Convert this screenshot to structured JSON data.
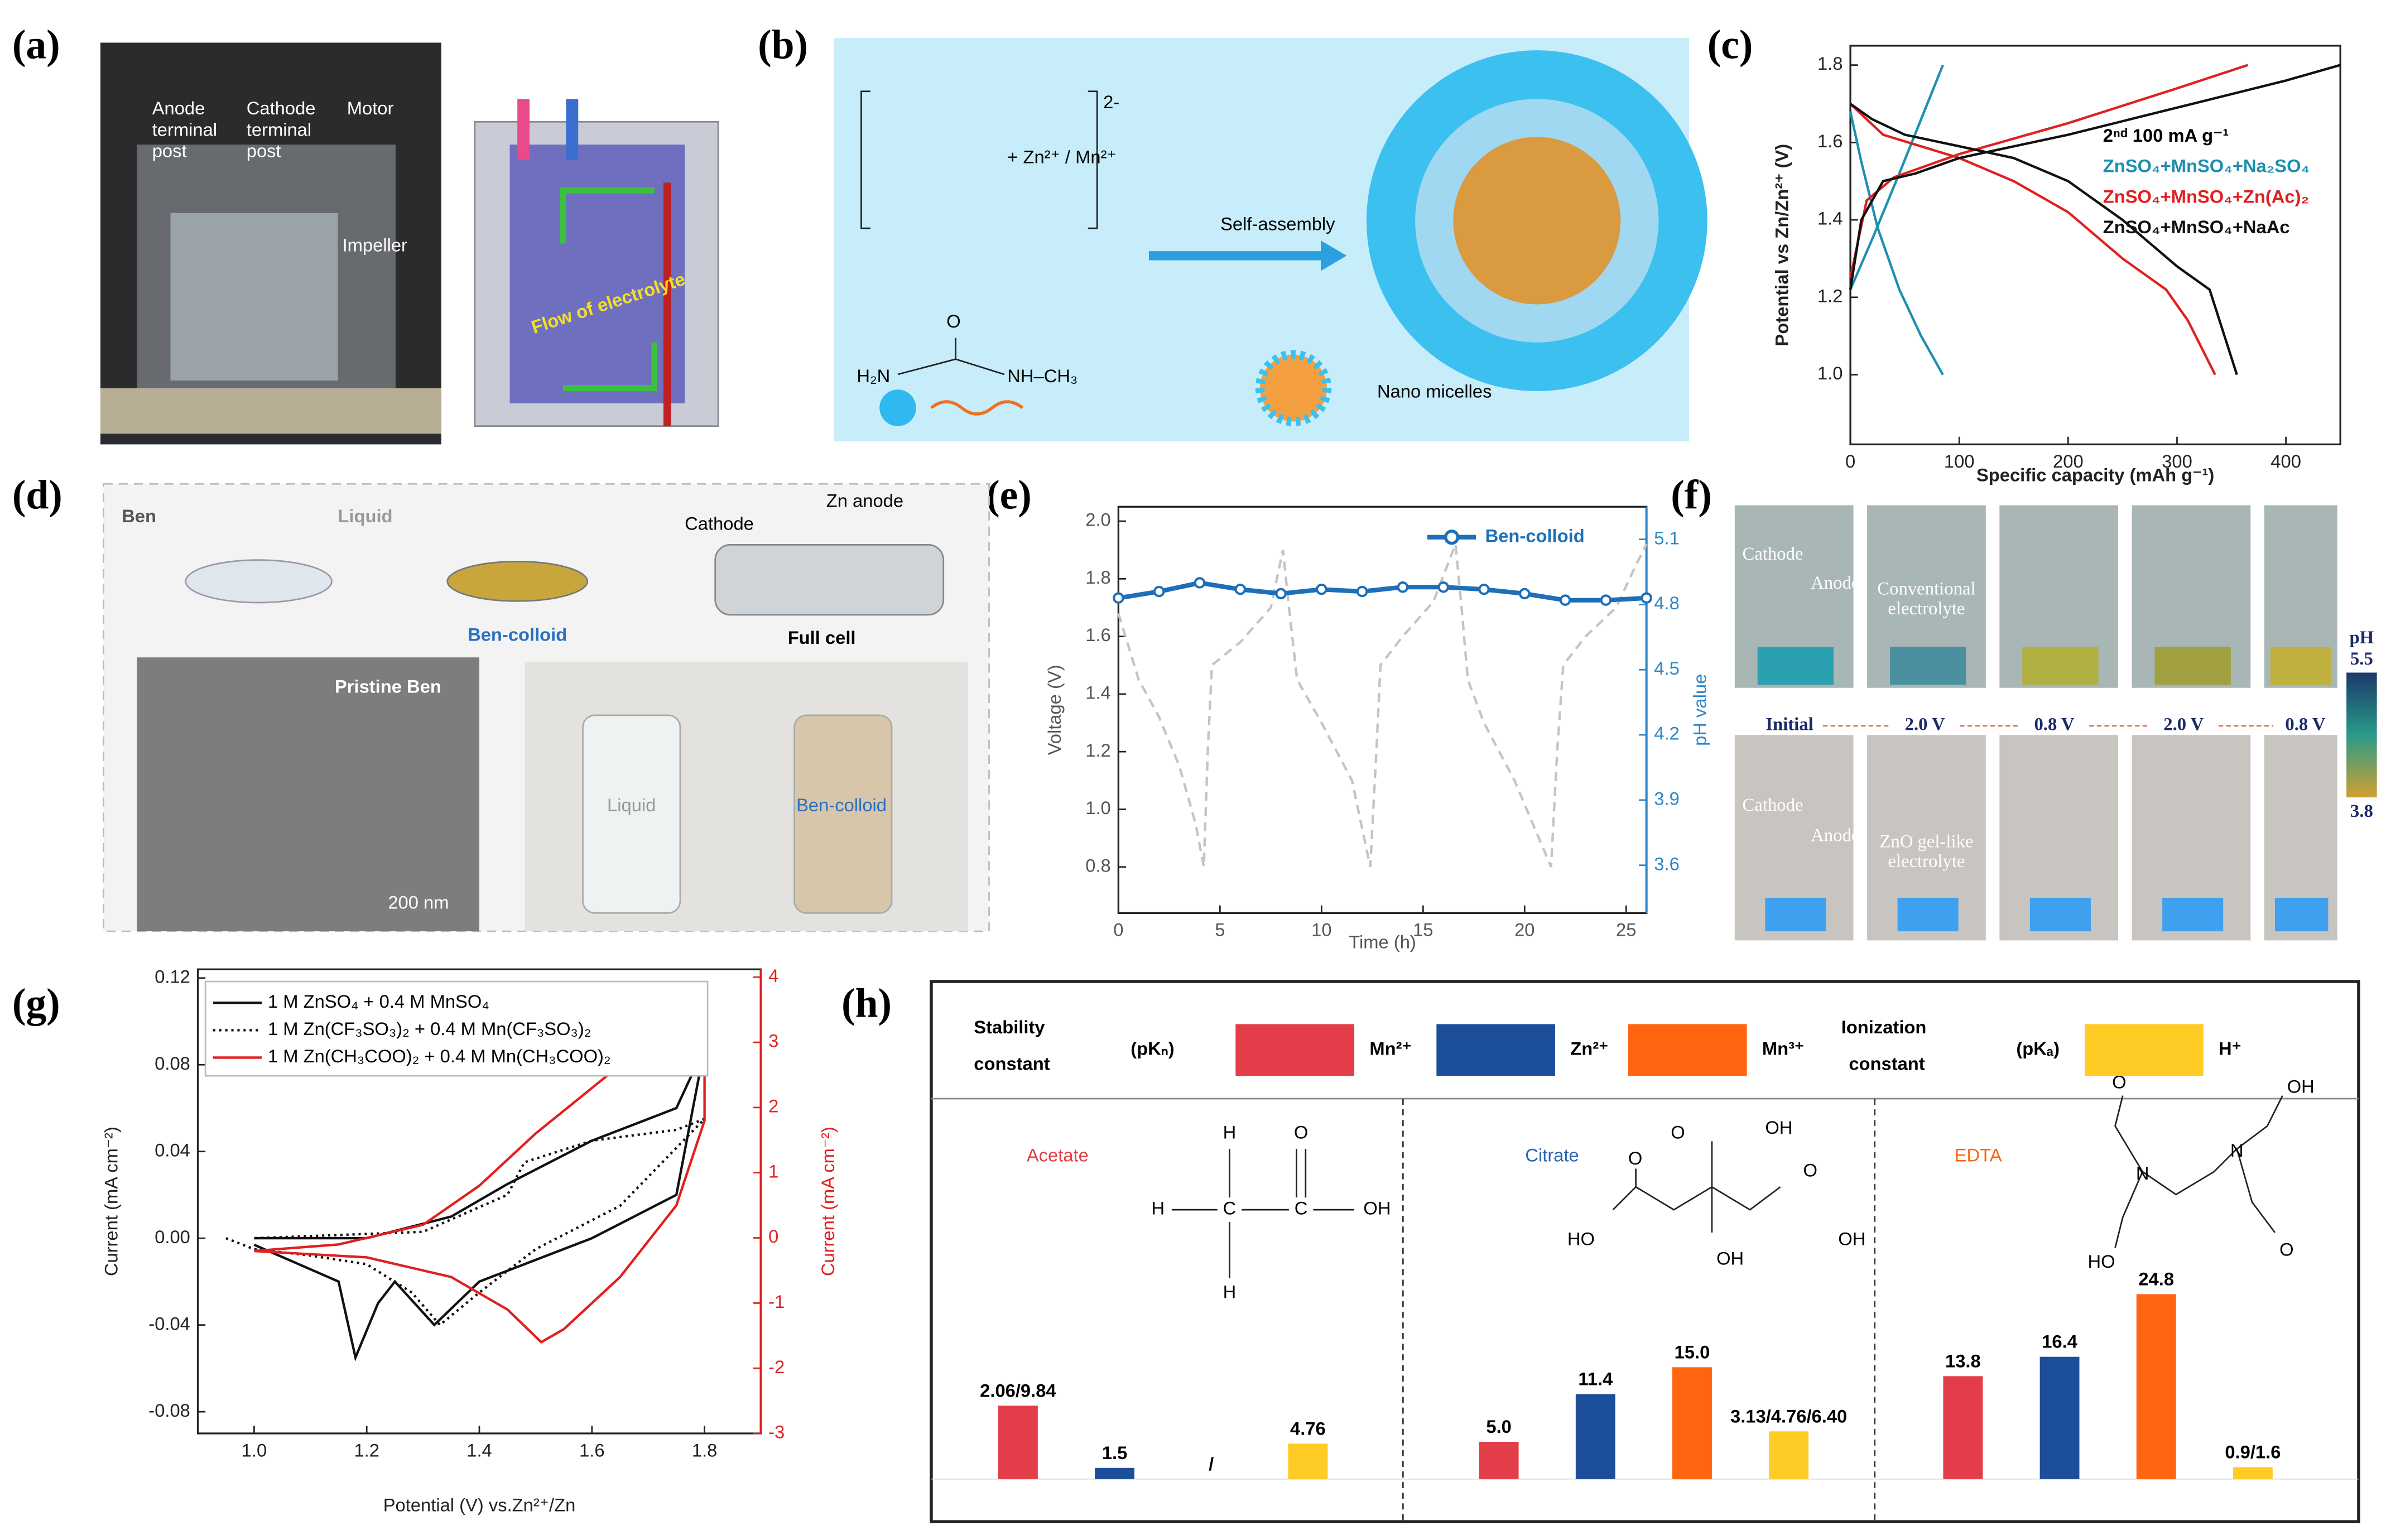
{
  "panels": {
    "a": {
      "label": "(a)",
      "anode": [
        "Anode",
        "terminal",
        "post"
      ],
      "cathode": [
        "Cathode",
        "terminal",
        "post"
      ],
      "motor": "Motor",
      "impeller": "Impeller",
      "flow": "Flow of electrolyte"
    },
    "b": {
      "label": "(b)",
      "charge": "2-",
      "ions": "+ Zn²⁺ / Mn²⁺",
      "arrow": "Self-assembly",
      "o": "O",
      "amine": "H₂N",
      "methyl": "NH–CH₃",
      "micelles": "Nano micelles"
    },
    "d": {
      "label": "(d)",
      "ben": "Ben",
      "liquid": "Liquid",
      "colloid": "Ben-colloid",
      "cathode": "Cathode",
      "anode": "Zn anode",
      "cell": "Full cell",
      "tem": "Pristine Ben",
      "scale": "200 nm",
      "photo_liquid": "Liquid",
      "photo_colloid": "Ben-colloid"
    },
    "f": {
      "label": "(f)",
      "cathode": "Cathode",
      "anode": "Anode",
      "conventional": [
        "Conventional",
        "electrolyte"
      ],
      "steps": [
        "Initial",
        "2.0 V",
        "0.8 V",
        "2.0 V",
        "0.8 V"
      ],
      "gel": [
        "ZnO gel-like",
        "electrolyte"
      ],
      "cathode2": "Cathode",
      "anode2": "Anode",
      "ph": "pH",
      "ph_high": "5.5",
      "ph_low": "3.8"
    }
  },
  "chart_data": [
    {
      "type": "line",
      "label": "(c)",
      "annotation": "2ⁿᵈ  100 mA g⁻¹",
      "xlabel": "Specific capacity (mAh g⁻¹)",
      "ylabel": "Potential vs Zn/Zn²⁺ (V)",
      "xlim": [
        0,
        450
      ],
      "ylim": [
        0.82,
        1.85
      ],
      "xticks": [
        0,
        100,
        200,
        300,
        400
      ],
      "yticks": [
        {
          "value": 1,
          "label": "1.0"
        },
        1.2,
        1.4,
        1.6,
        1.8
      ],
      "series": [
        {
          "name": "ZnSO₄+MnSO₄+Na₂SO₄",
          "color": "#1f8fb0",
          "style": "solid",
          "x": [
            0,
            10,
            25,
            45,
            65,
            85,
            null,
            0,
            20,
            45,
            65,
            85
          ],
          "values": [
            1.68,
            1.55,
            1.38,
            1.22,
            1.1,
            1.0,
            null,
            1.22,
            1.35,
            1.52,
            1.66,
            1.8
          ]
        },
        {
          "name": "ZnSO₄+MnSO₄+Zn(Ac)₂",
          "color": "#e02020",
          "style": "solid",
          "x": [
            0,
            30,
            100,
            150,
            200,
            250,
            290,
            310,
            335,
            null,
            0,
            15,
            40,
            100,
            200,
            300,
            365
          ],
          "values": [
            1.7,
            1.62,
            1.56,
            1.5,
            1.42,
            1.3,
            1.22,
            1.14,
            1.0,
            null,
            1.25,
            1.45,
            1.51,
            1.57,
            1.65,
            1.74,
            1.8
          ]
        },
        {
          "name": "ZnSO₄+MnSO₄+NaAc",
          "color": "#111111",
          "style": "solid",
          "x": [
            0,
            20,
            50,
            100,
            150,
            200,
            250,
            300,
            330,
            355,
            null,
            0,
            10,
            30,
            60,
            100,
            200,
            300,
            400,
            450
          ],
          "values": [
            1.7,
            1.66,
            1.62,
            1.59,
            1.56,
            1.5,
            1.4,
            1.28,
            1.22,
            1.0,
            null,
            1.22,
            1.4,
            1.5,
            1.52,
            1.56,
            1.62,
            1.69,
            1.76,
            1.8
          ]
        }
      ]
    },
    {
      "type": "line",
      "label": "(e)",
      "xlabel": "Time (h)",
      "ylabel": "Voltage (V)",
      "y2label": "pH value",
      "y2_color": "#2a86c8",
      "xlim": [
        0,
        26
      ],
      "ylim": [
        0.64,
        2.05
      ],
      "y2lim": [
        3.38,
        5.25
      ],
      "xticks": [
        0,
        5,
        10,
        15,
        20,
        25
      ],
      "yticks": [
        0.8,
        {
          "value": 1,
          "label": "1.0"
        },
        1.2,
        1.4,
        1.6,
        1.8,
        {
          "value": 2,
          "label": "2.0"
        }
      ],
      "y2ticks": [
        3.6,
        3.9,
        4.2,
        4.5,
        4.8,
        5.1
      ],
      "series": [
        {
          "color": "#c4c4c4",
          "style": "dashed",
          "x": [
            0,
            1,
            2,
            3,
            3.8,
            4.2,
            4.4,
            4.6,
            6,
            7.5,
            8.1,
            8.4,
            8.8,
            10,
            11.5,
            12.4,
            12.7,
            12.9,
            14,
            15.5,
            16.6,
            16.9,
            17.2,
            18,
            19.5,
            20.7,
            21.3,
            21.6,
            21.9,
            23,
            24.5,
            25.5,
            26
          ],
          "values": [
            1.68,
            1.45,
            1.32,
            1.15,
            0.95,
            0.8,
            1.2,
            1.5,
            1.58,
            1.7,
            1.9,
            1.7,
            1.45,
            1.3,
            1.1,
            0.8,
            1.2,
            1.5,
            1.6,
            1.72,
            1.92,
            1.7,
            1.45,
            1.3,
            1.1,
            0.9,
            0.8,
            1.2,
            1.5,
            1.6,
            1.7,
            1.85,
            1.92
          ]
        },
        {
          "name": "Ben-colloid",
          "color": "#1e6fb8",
          "style": "solid",
          "marker": true,
          "axis": "y2",
          "x": [
            0,
            2,
            4,
            6,
            8,
            10,
            12,
            14,
            16,
            18,
            20,
            22,
            24,
            26
          ],
          "values": [
            4.83,
            4.86,
            4.9,
            4.87,
            4.85,
            4.87,
            4.86,
            4.88,
            4.88,
            4.87,
            4.85,
            4.82,
            4.82,
            4.83
          ]
        }
      ]
    },
    {
      "type": "line",
      "label": "(g)",
      "xlabel": "Potential (V) vs.Zn²⁺/Zn",
      "ylabel": "Current (mA cm⁻²)",
      "y2label": "Current (mA cm⁻²)",
      "y2_color": "#e02020",
      "xlim": [
        0.9,
        1.9
      ],
      "ylim": [
        -0.09,
        0.124
      ],
      "y2lim": [
        -3,
        4.12
      ],
      "xticks": [
        {
          "value": 1,
          "label": "1.0"
        },
        1.2,
        1.4,
        1.6,
        1.8
      ],
      "yticks": [
        -0.08,
        -0.04,
        {
          "value": 0,
          "label": "0.00"
        },
        0.04,
        0.08,
        0.12
      ],
      "y2ticks": [
        -3,
        -2,
        -1,
        0,
        1,
        2,
        3,
        4
      ],
      "series": [
        {
          "name": "1 M ZnSO₄ + 0.4 M MnSO₄",
          "color": "#111111",
          "style": "solid",
          "x": [
            1.0,
            1.15,
            1.18,
            1.22,
            1.25,
            1.32,
            1.4,
            1.6,
            1.75,
            1.8,
            1.75,
            1.6,
            1.45,
            1.35,
            1.2,
            1.0
          ],
          "values": [
            -0.003,
            -0.02,
            -0.055,
            -0.03,
            -0.02,
            -0.04,
            -0.02,
            0.0,
            0.02,
            0.088,
            0.06,
            0.045,
            0.025,
            0.01,
            0.0,
            0.0
          ]
        },
        {
          "name": "1 M Zn(CF₃SO₃)₂ + 0.4 M Mn(CF₃SO₃)₂",
          "color": "#111111",
          "style": "dotted",
          "x": [
            0.95,
            1.0,
            1.1,
            1.2,
            1.28,
            1.33,
            1.4,
            1.5,
            1.65,
            1.8,
            1.75,
            1.6,
            1.48,
            1.45,
            1.3,
            1.0
          ],
          "values": [
            0.0,
            -0.005,
            -0.008,
            -0.012,
            -0.025,
            -0.04,
            -0.025,
            -0.005,
            0.015,
            0.055,
            0.05,
            0.045,
            0.035,
            0.02,
            0.003,
            0.0
          ]
        },
        {
          "name": "1 M Zn(CH₃COO)₂ + 0.4 M Mn(CH₃COO)₂",
          "color": "#e02020",
          "style": "solid",
          "axis": "y2",
          "x": [
            1.0,
            1.2,
            1.35,
            1.45,
            1.51,
            1.55,
            1.65,
            1.75,
            1.8,
            1.8,
            1.78,
            1.7,
            1.6,
            1.5,
            1.4,
            1.3,
            1.15,
            1.0
          ],
          "values": [
            -0.2,
            -0.3,
            -0.6,
            -1.1,
            -1.6,
            -1.4,
            -0.6,
            0.5,
            1.8,
            3.0,
            3.3,
            3.0,
            2.3,
            1.6,
            0.8,
            0.2,
            -0.1,
            -0.2
          ]
        }
      ]
    },
    {
      "type": "bar",
      "label": "(h)",
      "stability": [
        "Stability",
        "constant"
      ],
      "stability_unit": "(pKₙ)",
      "ionization": [
        "Ionization",
        "constant"
      ],
      "ionization_unit": "(pKₐ)",
      "categories": [
        "Acetate",
        "Citrate",
        "EDTA"
      ],
      "category_colors": [
        "#e23d48",
        "#2a62b0",
        "#ff6410"
      ],
      "series": [
        {
          "name": "Mn²⁺",
          "color": "#e23d48",
          "values": [
            9.84,
            5.0,
            13.8
          ],
          "value_labels": [
            "2.06/9.84",
            "5.0",
            "13.8"
          ]
        },
        {
          "name": "Zn²⁺",
          "color": "#1d4e9a",
          "values": [
            1.5,
            11.4,
            16.4
          ],
          "value_labels": [
            "1.5",
            "11.4",
            "16.4"
          ]
        },
        {
          "name": "Mn³⁺",
          "color": "#ff6410",
          "values": [
            null,
            15.0,
            24.8
          ],
          "value_labels": [
            "/",
            "15.0",
            "24.8"
          ]
        },
        {
          "name": "H⁺",
          "color": "#ffcc26",
          "values": [
            4.76,
            6.4,
            1.6
          ],
          "value_labels": [
            "4.76",
            "3.13/4.76/6.40",
            "0.9/1.6"
          ]
        }
      ],
      "structures": {
        "acetate": [
          "H",
          "C",
          "C",
          "OH",
          "H",
          "H",
          "O"
        ],
        "citrate": [
          "OH",
          "O",
          "HO",
          "O",
          "O",
          "OH",
          "OH"
        ],
        "edta": [
          "N",
          "N",
          "OH",
          "HO",
          "O",
          "O"
        ]
      }
    }
  ]
}
